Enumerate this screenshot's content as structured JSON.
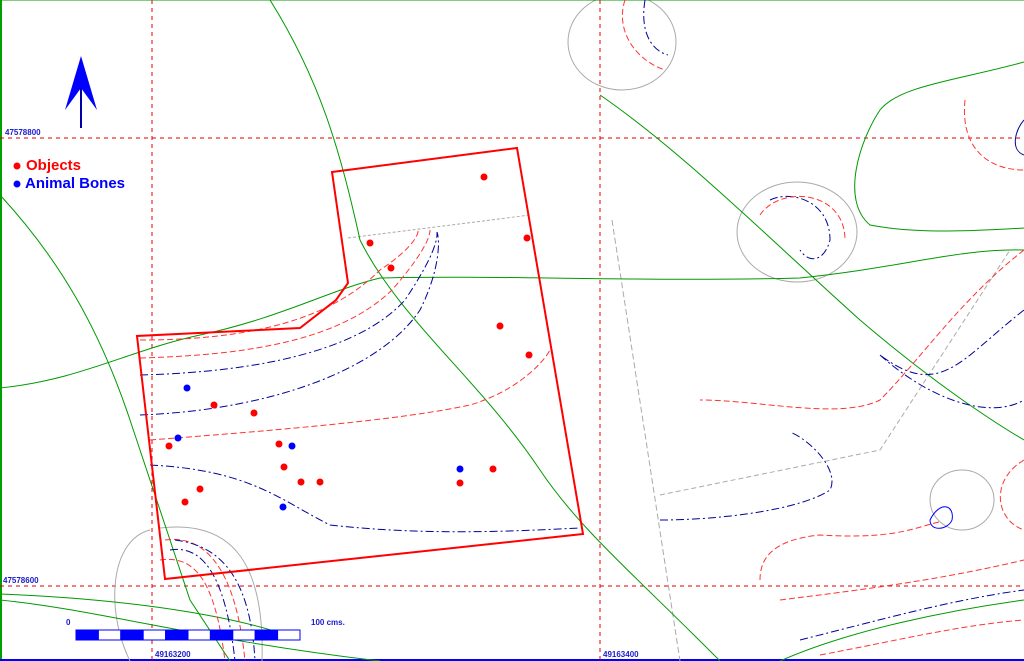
{
  "grid_labels": {
    "northing_top": "47578800",
    "northing_bottom": "47578600",
    "easting_left": "49163200",
    "easting_right": "49163400"
  },
  "legend": {
    "objects": {
      "label": "Objects",
      "color": "#ff0000"
    },
    "animal_bones": {
      "label": "Animal Bones",
      "color": "#0000ff"
    }
  },
  "scale_bar": {
    "start_label": "0",
    "end_label": "100 cms."
  },
  "north_arrow": "north-arrow-icon",
  "colors": {
    "trench_outline": "#ff0000",
    "grid": "#e00000",
    "contour_red": "#ff3333",
    "contour_blue": "#000099",
    "path_green": "#009900"
  }
}
